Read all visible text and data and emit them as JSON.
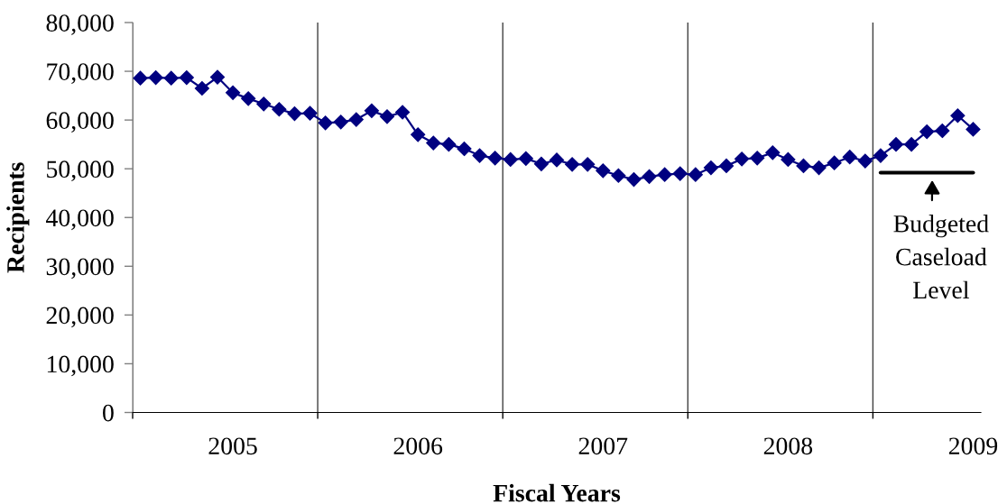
{
  "chart_data": {
    "type": "line",
    "xlabel": "Fiscal Years",
    "ylabel": "Recipients",
    "categories": [
      null,
      null,
      null,
      null,
      null,
      null,
      "2005",
      null,
      null,
      null,
      null,
      null,
      null,
      null,
      null,
      null,
      null,
      null,
      "2006",
      null,
      null,
      null,
      null,
      null,
      null,
      null,
      null,
      null,
      null,
      null,
      "2007",
      null,
      null,
      null,
      null,
      null,
      null,
      null,
      null,
      null,
      null,
      null,
      "2008",
      null,
      null,
      null,
      null,
      null,
      null,
      null,
      null,
      null,
      null,
      null,
      "2009"
    ],
    "series": [
      {
        "color": "#000080",
        "values": [
          68600,
          68700,
          68600,
          68700,
          66500,
          68800,
          65600,
          64400,
          63300,
          62200,
          61300,
          61400,
          59400,
          59600,
          60100,
          61900,
          60700,
          61600,
          57000,
          55300,
          55000,
          54100,
          52700,
          52200,
          51900,
          52100,
          51000,
          51800,
          50900,
          50900,
          49600,
          48600,
          47800,
          48400,
          48800,
          49000,
          48800,
          50200,
          50600,
          52000,
          52200,
          53300,
          51900,
          50600,
          50200,
          51200,
          52400,
          51600,
          52700,
          55000,
          55000,
          57600,
          57800,
          60900,
          58100
        ]
      },
      {
        "type": "line",
        "color": "#000000",
        "marker": "none",
        "values": [
          null,
          null,
          null,
          null,
          null,
          null,
          null,
          null,
          null,
          null,
          null,
          null,
          null,
          null,
          null,
          null,
          null,
          null,
          null,
          null,
          null,
          null,
          null,
          null,
          null,
          null,
          null,
          null,
          null,
          null,
          null,
          null,
          null,
          null,
          null,
          null,
          null,
          null,
          null,
          null,
          null,
          null,
          null,
          null,
          null,
          null,
          null,
          null,
          49200,
          49200,
          49200,
          49200,
          49200,
          49200,
          49200
        ]
      }
    ],
    "marker": "diamond",
    "line_style": "solid",
    "grid": "x",
    "ylim": [
      0,
      80000
    ],
    "yticks": [
      {
        "value": 0,
        "label": "0"
      },
      {
        "value": 10000,
        "label": "10,000"
      },
      {
        "value": 20000,
        "label": "20,000"
      },
      {
        "value": 30000,
        "label": "30,000"
      },
      {
        "value": 40000,
        "label": "40,000"
      },
      {
        "value": 50000,
        "label": "50,000"
      },
      {
        "value": 60000,
        "label": "60,000"
      },
      {
        "value": 70000,
        "label": "70,000"
      },
      {
        "value": 80000,
        "label": "80,000"
      }
    ],
    "annotations": [
      {
        "text": "Budgeted\nCaseload\nLevel",
        "y": 49200
      }
    ]
  }
}
